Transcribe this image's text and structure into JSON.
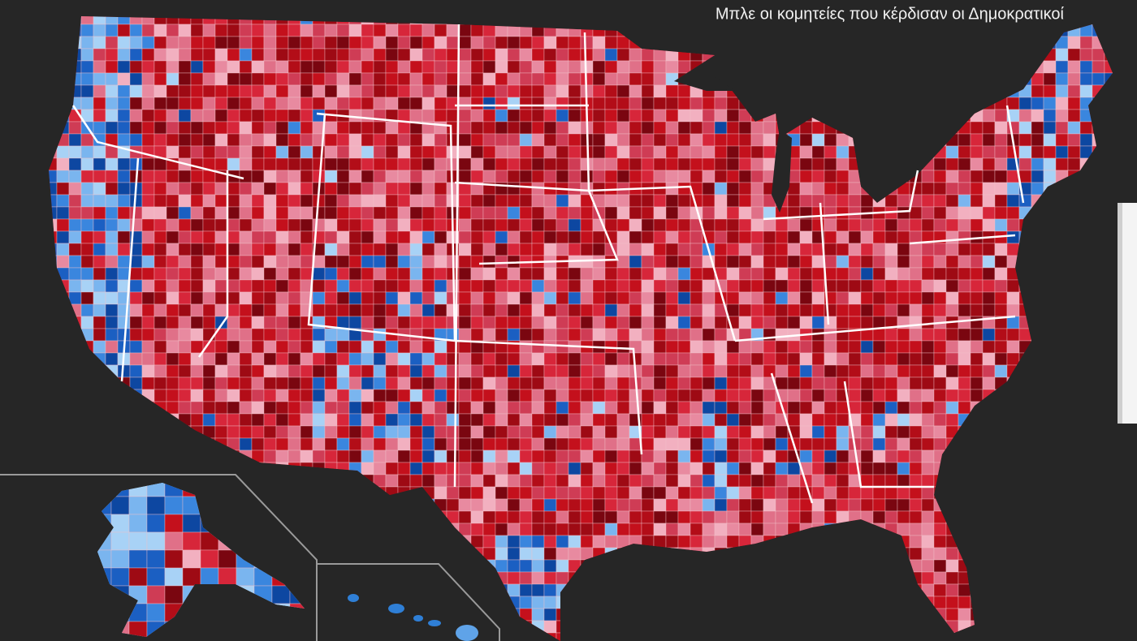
{
  "caption": "Μπλε οι κομητείες που κέρδισαν οι Δημοκρατικοί"
}
